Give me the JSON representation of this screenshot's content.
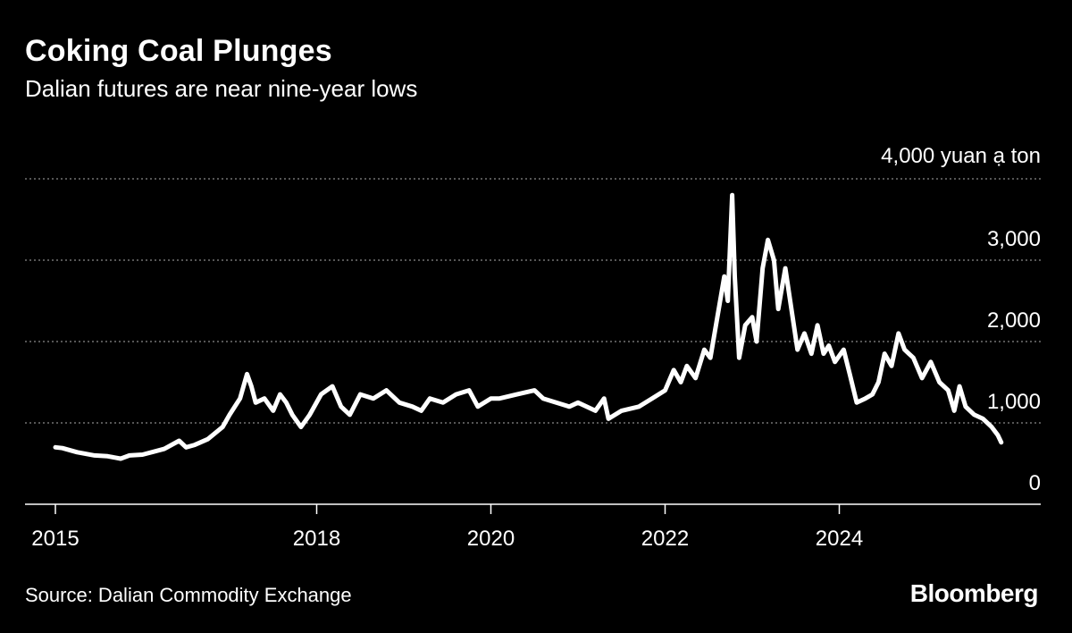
{
  "header": {
    "title": "Coking Coal Plunges",
    "subtitle": "Dalian futures are near nine-year lows"
  },
  "footer": {
    "source": "Source: Dalian Commodity Exchange",
    "brand": "Bloomberg"
  },
  "colors": {
    "background": "#000000",
    "line": "#ffffff",
    "grid": "#8a8a8a",
    "text": "#ffffff"
  },
  "chart_data": {
    "type": "line",
    "title": "Coking Coal Plunges",
    "subtitle": "Dalian futures are near nine-year lows",
    "ylabel": "yuan a ton",
    "ylim": [
      0,
      4000
    ],
    "yticks": [
      0,
      1000,
      2000,
      3000,
      4000
    ],
    "ytick_labels": [
      "0",
      "1,000",
      "2,000",
      "3,000",
      "4,000 yuan ạ ton"
    ],
    "xticks": [
      2015,
      2018,
      2020,
      2022,
      2024
    ],
    "xtick_labels": [
      "2015",
      "2018",
      "2020",
      "2022",
      "2024"
    ],
    "grid": "horizontal dotted",
    "legend": "none",
    "series": [
      {
        "values": [
          [
            2015.0,
            700
          ],
          [
            2015.08,
            690
          ],
          [
            2015.25,
            640
          ],
          [
            2015.45,
            600
          ],
          [
            2015.6,
            590
          ],
          [
            2015.75,
            560
          ],
          [
            2015.85,
            600
          ],
          [
            2016.0,
            610
          ],
          [
            2016.25,
            680
          ],
          [
            2016.42,
            780
          ],
          [
            2016.5,
            700
          ],
          [
            2016.6,
            730
          ],
          [
            2016.75,
            800
          ],
          [
            2016.92,
            950
          ],
          [
            2017.0,
            1100
          ],
          [
            2017.12,
            1300
          ],
          [
            2017.2,
            1600
          ],
          [
            2017.25,
            1450
          ],
          [
            2017.3,
            1250
          ],
          [
            2017.4,
            1300
          ],
          [
            2017.5,
            1150
          ],
          [
            2017.58,
            1350
          ],
          [
            2017.65,
            1250
          ],
          [
            2017.72,
            1100
          ],
          [
            2017.82,
            950
          ],
          [
            2017.92,
            1100
          ],
          [
            2018.05,
            1350
          ],
          [
            2018.18,
            1450
          ],
          [
            2018.28,
            1200
          ],
          [
            2018.38,
            1100
          ],
          [
            2018.5,
            1350
          ],
          [
            2018.65,
            1300
          ],
          [
            2018.8,
            1400
          ],
          [
            2018.95,
            1250
          ],
          [
            2019.1,
            1200
          ],
          [
            2019.2,
            1150
          ],
          [
            2019.3,
            1300
          ],
          [
            2019.45,
            1250
          ],
          [
            2019.6,
            1350
          ],
          [
            2019.75,
            1400
          ],
          [
            2019.85,
            1200
          ],
          [
            2020.0,
            1300
          ],
          [
            2020.1,
            1300
          ],
          [
            2020.3,
            1350
          ],
          [
            2020.5,
            1400
          ],
          [
            2020.6,
            1300
          ],
          [
            2020.75,
            1250
          ],
          [
            2020.9,
            1200
          ],
          [
            2021.0,
            1250
          ],
          [
            2021.2,
            1150
          ],
          [
            2021.3,
            1300
          ],
          [
            2021.35,
            1050
          ],
          [
            2021.5,
            1150
          ],
          [
            2021.7,
            1200
          ],
          [
            2021.85,
            1300
          ],
          [
            2022.0,
            1400
          ],
          [
            2022.1,
            1650
          ],
          [
            2022.18,
            1500
          ],
          [
            2022.25,
            1700
          ],
          [
            2022.35,
            1550
          ],
          [
            2022.45,
            1900
          ],
          [
            2022.52,
            1800
          ],
          [
            2022.6,
            2300
          ],
          [
            2022.68,
            2800
          ],
          [
            2022.72,
            2500
          ],
          [
            2022.77,
            3800
          ],
          [
            2022.8,
            2800
          ],
          [
            2022.85,
            1800
          ],
          [
            2022.92,
            2200
          ],
          [
            2023.0,
            2300
          ],
          [
            2023.05,
            2000
          ],
          [
            2023.12,
            2900
          ],
          [
            2023.18,
            3250
          ],
          [
            2023.25,
            3000
          ],
          [
            2023.3,
            2400
          ],
          [
            2023.38,
            2900
          ],
          [
            2023.45,
            2400
          ],
          [
            2023.52,
            1900
          ],
          [
            2023.6,
            2100
          ],
          [
            2023.68,
            1850
          ],
          [
            2023.75,
            2200
          ],
          [
            2023.82,
            1850
          ],
          [
            2023.88,
            1950
          ],
          [
            2023.95,
            1750
          ],
          [
            2024.05,
            1900
          ],
          [
            2024.12,
            1600
          ],
          [
            2024.2,
            1250
          ],
          [
            2024.3,
            1300
          ],
          [
            2024.38,
            1350
          ],
          [
            2024.45,
            1500
          ],
          [
            2024.52,
            1850
          ],
          [
            2024.6,
            1700
          ],
          [
            2024.68,
            2100
          ],
          [
            2024.75,
            1900
          ],
          [
            2024.85,
            1800
          ],
          [
            2024.95,
            1550
          ],
          [
            2025.05,
            1750
          ],
          [
            2025.15,
            1500
          ],
          [
            2025.25,
            1400
          ],
          [
            2025.32,
            1150
          ],
          [
            2025.38,
            1450
          ],
          [
            2025.45,
            1200
          ],
          [
            2025.55,
            1100
          ],
          [
            2025.65,
            1050
          ],
          [
            2025.75,
            950
          ],
          [
            2025.82,
            850
          ],
          [
            2025.86,
            760
          ]
        ]
      }
    ]
  }
}
